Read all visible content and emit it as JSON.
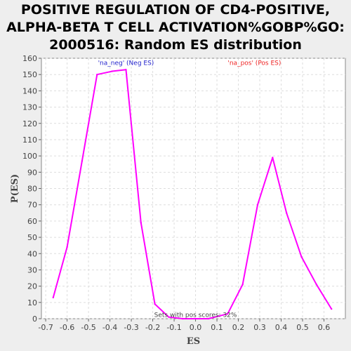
{
  "chart_data": {
    "type": "line",
    "title_lines": [
      "POSITIVE REGULATION OF CD4-POSITIVE,",
      "ALPHA-BETA T CELL ACTIVATION%GOBP%GO:",
      "2000516: Random ES distribution"
    ],
    "xlabel": "ES",
    "ylabel": "P(ES)",
    "xlim": [
      -0.72,
      0.7
    ],
    "ylim": [
      0,
      160
    ],
    "x_ticks": [
      -0.7,
      -0.6,
      -0.5,
      -0.4,
      -0.3,
      -0.2,
      -0.1,
      0.0,
      0.1,
      0.2,
      0.3,
      0.4,
      0.5,
      0.6
    ],
    "x_tick_labels": [
      "-0.7",
      "-0.6",
      "-0.5",
      "-0.4",
      "-0.3",
      "-0.2",
      "-0.1",
      "0.0",
      "0.1",
      "0.2",
      "0.3",
      "0.4",
      "0.5",
      "0.6"
    ],
    "y_ticks": [
      0,
      10,
      20,
      30,
      40,
      50,
      60,
      70,
      80,
      90,
      100,
      110,
      120,
      130,
      140,
      150,
      160
    ],
    "grid": true,
    "line_color": "#ff00ff",
    "series": [
      {
        "x": [
          -0.665,
          -0.6,
          -0.53,
          -0.46,
          -0.39,
          -0.325,
          -0.255,
          -0.19,
          -0.125,
          -0.06,
          0.0,
          0.06,
          0.15,
          0.22,
          0.29,
          0.36,
          0.425,
          0.495,
          0.565,
          0.635
        ],
        "y": [
          13,
          44,
          97,
          150,
          152,
          153,
          59,
          9,
          1,
          0,
          0,
          0,
          3,
          21,
          70,
          99,
          65,
          38,
          21,
          6
        ]
      }
    ],
    "annotations": [
      {
        "text": "'na_neg' (Neg ES)",
        "x": -0.325,
        "y": 156,
        "color": "#2222cc"
      },
      {
        "text": "'na_pos' (Pos ES)",
        "x": 0.275,
        "y": 156,
        "color": "#ee2222"
      },
      {
        "text": "Sets with pos scores: 32%",
        "x": 0.0,
        "y": 1,
        "color": "#444444"
      }
    ]
  }
}
